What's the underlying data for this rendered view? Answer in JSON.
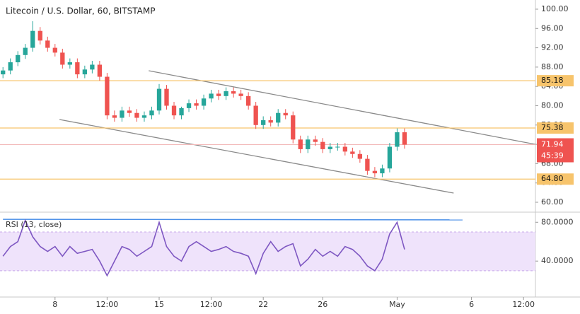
{
  "chart_data": [
    {
      "type": "candlestick",
      "title": "Litecoin / U.S. Dollar, 60, BITSTAMP",
      "x": [
        -3.5,
        -3,
        -2.5,
        -2,
        -1.5,
        -1,
        -0.5,
        0,
        0.5,
        1,
        1.5,
        2,
        2.5,
        3,
        3.5,
        4,
        4.5,
        5,
        5.5,
        6,
        6.5,
        7,
        7.5,
        8,
        8.5,
        9,
        9.5,
        10,
        10.5,
        11,
        11.5,
        12,
        12.5,
        13,
        13.5,
        14,
        14.5,
        15,
        15.5,
        16,
        16.5,
        17,
        17.5,
        18,
        18.5,
        19,
        19.5,
        20,
        20.5,
        21,
        21.5,
        22,
        22.5,
        23,
        23.5
      ],
      "open": [
        86.5,
        87.3,
        89,
        90.5,
        92,
        95.5,
        93.5,
        92,
        91,
        88.5,
        89,
        86.5,
        87.5,
        88.5,
        86,
        78,
        77.5,
        79,
        78.5,
        77.5,
        78,
        79,
        83.5,
        80,
        78,
        79.5,
        80.5,
        80,
        81.5,
        82.5,
        82,
        83,
        82.5,
        82,
        80,
        76,
        77,
        76.5,
        78.5,
        78,
        73,
        71,
        73,
        72.5,
        71,
        71.5,
        71.5,
        70.5,
        70,
        69,
        66.5,
        66,
        67,
        71.5,
        74.5
      ],
      "high": [
        88,
        89.8,
        91.3,
        92.8,
        97.5,
        96.3,
        94.3,
        92.8,
        91.8,
        89.8,
        89.8,
        88.3,
        89.3,
        89.3,
        86.8,
        79,
        79.8,
        79.8,
        79.3,
        78.8,
        79.8,
        84.5,
        84.3,
        80.8,
        79.8,
        81.3,
        81.3,
        82.3,
        83.3,
        83.3,
        83.8,
        83.8,
        83.3,
        82.8,
        80.8,
        77.8,
        77.8,
        79.3,
        79.3,
        78.8,
        73.8,
        73.8,
        73.8,
        73.3,
        72.3,
        72.3,
        72.3,
        71.3,
        70.8,
        69.8,
        67.3,
        67.8,
        72.3,
        75.3,
        75.3
      ],
      "low": [
        85.7,
        86.5,
        88.2,
        89.7,
        91.2,
        92.7,
        91.2,
        90.2,
        87.7,
        87.7,
        85.7,
        85.7,
        86.7,
        85.2,
        77.2,
        76.7,
        76.7,
        77.7,
        76.7,
        76.7,
        77.2,
        78.2,
        79.2,
        77.2,
        77.2,
        78.7,
        79.2,
        79.2,
        80.7,
        81.2,
        81.2,
        81.7,
        81.2,
        79.2,
        75.2,
        75.2,
        75.7,
        75.7,
        77.2,
        72.2,
        70.2,
        70.2,
        71.7,
        70.2,
        70.2,
        70.7,
        69.7,
        69.2,
        68.2,
        65.7,
        65.2,
        65.2,
        66.2,
        70.7,
        71.1
      ],
      "close": [
        87.3,
        89,
        90.5,
        92,
        95.5,
        93.5,
        92,
        91,
        88.5,
        89,
        86.5,
        87.5,
        88.5,
        86,
        78,
        77.5,
        79,
        78.5,
        77.5,
        78,
        79,
        83.5,
        80,
        78,
        79.5,
        80.5,
        80,
        81.5,
        82.5,
        82,
        83,
        82.5,
        82,
        80,
        76,
        77,
        76.5,
        78.5,
        78,
        73,
        71,
        73,
        72.5,
        71,
        71.5,
        71.5,
        70.5,
        70,
        69,
        66.5,
        66,
        67,
        71.5,
        74.5,
        71.94
      ],
      "up_color": "#26a69a",
      "down_color": "#ef5350",
      "xlim": [
        -3.7,
        32.3
      ],
      "ylim": [
        57.95,
        101.9
      ],
      "yticks": [
        {
          "value": 100,
          "label": "100.00"
        },
        {
          "value": 96,
          "label": "96.00"
        },
        {
          "value": 92,
          "label": "92.00"
        },
        {
          "value": 88,
          "label": "88.00"
        },
        {
          "value": 84,
          "label": "84.00"
        },
        {
          "value": 80,
          "label": "80.00"
        },
        {
          "value": 76,
          "label": "76.00"
        },
        {
          "value": 72,
          "label": "72.00"
        },
        {
          "value": 68,
          "label": "68.00"
        },
        {
          "value": 64,
          "label": "64.00"
        },
        {
          "value": 60,
          "label": "60.00"
        }
      ],
      "levels": [
        {
          "value": 85.18,
          "label": "85.18"
        },
        {
          "value": 75.38,
          "label": "75.38"
        },
        {
          "value": 64.8,
          "label": "64.80"
        }
      ],
      "level_color": "#f7c46c",
      "last_price": 71.94,
      "countdown": "45:39",
      "trendlines": [
        {
          "x": [
            6.3,
            32.3
          ],
          "y": [
            87.25,
            72.0
          ]
        },
        {
          "x": [
            0.3,
            26.8
          ],
          "y": [
            77.14,
            61.9
          ]
        }
      ],
      "trendline_color": "#8a8a8a"
    },
    {
      "type": "line",
      "title": "RSI (13, close)",
      "x": [
        -3.5,
        -3,
        -2.5,
        -2,
        -1.5,
        -1,
        -0.5,
        0,
        0.5,
        1,
        1.5,
        2,
        2.5,
        3,
        3.5,
        4,
        4.5,
        5,
        5.5,
        6,
        6.5,
        7,
        7.5,
        8,
        8.5,
        9,
        9.5,
        10,
        10.5,
        11,
        11.5,
        12,
        12.5,
        13,
        13.5,
        14,
        14.5,
        15,
        15.5,
        16,
        16.5,
        17,
        17.5,
        18,
        18.5,
        19,
        19.5,
        20,
        20.5,
        21,
        21.5,
        22,
        22.5,
        23,
        23.5
      ],
      "values": [
        45,
        55,
        60,
        82,
        65,
        55,
        50,
        55,
        45,
        55,
        48,
        50,
        52,
        40,
        25,
        40,
        55,
        52,
        45,
        50,
        55,
        80,
        55,
        45,
        40,
        55,
        60,
        55,
        50,
        52,
        55,
        50,
        48,
        45,
        27,
        48,
        60,
        50,
        55,
        58,
        35,
        42,
        52,
        45,
        50,
        45,
        55,
        52,
        45,
        35,
        30,
        42,
        68,
        80,
        52
      ],
      "color": "#7e57c2",
      "band": [
        30,
        70
      ],
      "band_color": "#efe3fb",
      "trendline": {
        "x": [
          -3.5,
          27.4
        ],
        "y": [
          83,
          82.5
        ]
      },
      "trendline_color": "#4a8fe8",
      "xlim": [
        -3.7,
        32.3
      ],
      "ylim": [
        3,
        90.4
      ],
      "yticks": [
        {
          "value": 80,
          "label": "80.0000"
        },
        {
          "value": 40,
          "label": "40.0000"
        }
      ],
      "xticks": [
        {
          "value": 0,
          "label": "8"
        },
        {
          "value": 3.5,
          "label": "12:00"
        },
        {
          "value": 7,
          "label": "15"
        },
        {
          "value": 10.5,
          "label": "12:00"
        },
        {
          "value": 14,
          "label": "22"
        },
        {
          "value": 18,
          "label": "26"
        },
        {
          "value": 23,
          "label": "May"
        },
        {
          "value": 28,
          "label": "6"
        },
        {
          "value": 31.5,
          "label": "12:00"
        }
      ]
    }
  ]
}
